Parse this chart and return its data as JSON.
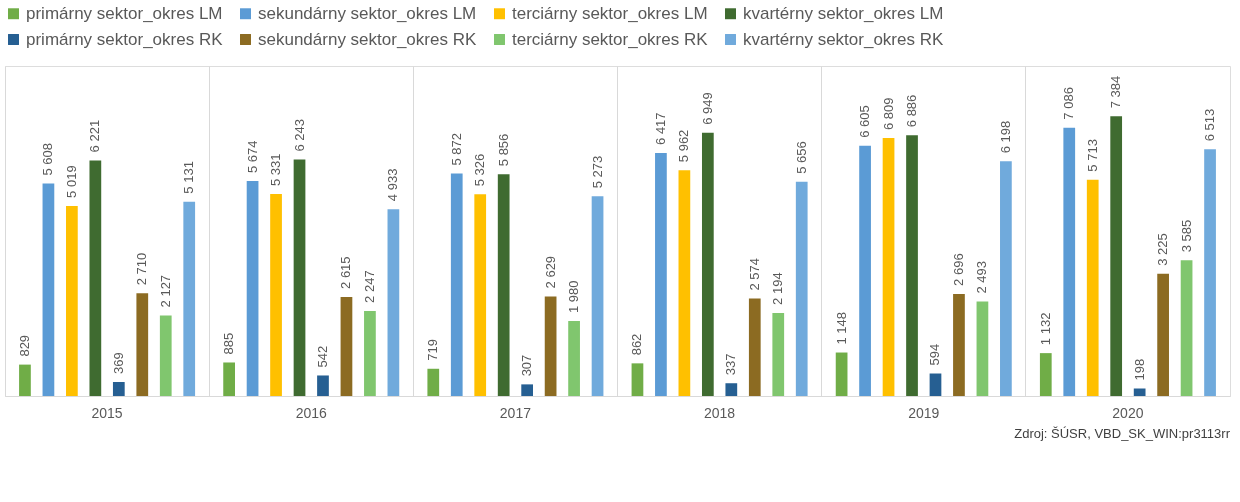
{
  "chart_data": {
    "type": "bar",
    "categories": [
      "2015",
      "2016",
      "2017",
      "2018",
      "2019",
      "2020"
    ],
    "series": [
      {
        "name": "primárny sektor_okres LM",
        "color": "#70ad47",
        "values": [
          829,
          885,
          719,
          862,
          1148,
          1132
        ]
      },
      {
        "name": "sekundárny sektor_okres LM",
        "color": "#5b9bd5",
        "values": [
          5608,
          5674,
          5872,
          6417,
          6605,
          7086
        ]
      },
      {
        "name": "terciárny sektor_okres LM",
        "color": "#ffc000",
        "values": [
          5019,
          5331,
          5326,
          5962,
          6809,
          5713
        ]
      },
      {
        "name": "kvartérny sektor_okres LM",
        "color": "#3f6b30",
        "values": [
          6221,
          6243,
          5856,
          6949,
          6886,
          7384
        ]
      },
      {
        "name": "primárny sektor_okres RK",
        "color": "#265f92",
        "values": [
          369,
          542,
          307,
          337,
          594,
          198
        ]
      },
      {
        "name": "sekundárny sektor_okres RK",
        "color": "#8c6b22",
        "values": [
          2710,
          2615,
          2629,
          2574,
          2696,
          3225
        ]
      },
      {
        "name": "terciárny sektor_okres RK",
        "color": "#80c66e",
        "values": [
          2127,
          2247,
          1980,
          2194,
          2493,
          3585
        ]
      },
      {
        "name": "kvartérny sektor_okres RK",
        "color": "#70aadc",
        "values": [
          5131,
          4933,
          5273,
          5656,
          6198,
          6513
        ]
      }
    ],
    "data_labels": true,
    "legend": "top",
    "grid": "x",
    "tick_labels": "x",
    "annotations": [
      "Zdroj: ŠÚSR, VBD_SK_WIN:pr3113rr"
    ]
  }
}
